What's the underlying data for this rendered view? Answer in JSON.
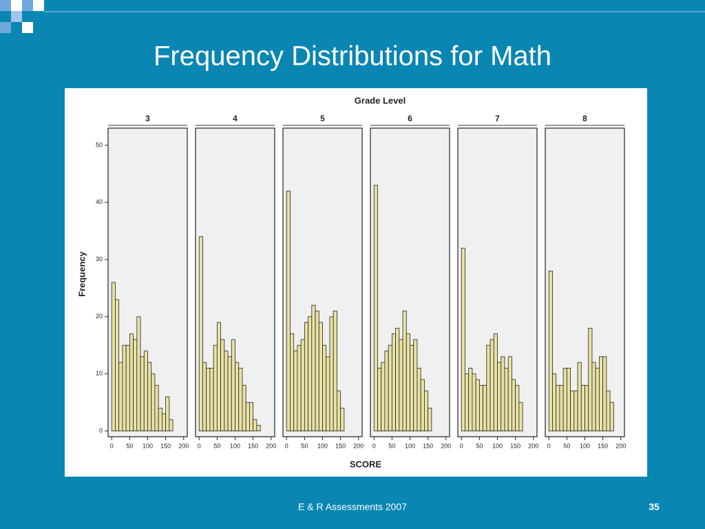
{
  "slide": {
    "title": "Frequency Distributions for Math",
    "footer": "E & R Assessments 2007",
    "page_number": "35"
  },
  "figure": {
    "title": "Grade Level",
    "ylabel": "Frequency",
    "xlabel": "SCORE"
  },
  "chart_data": [
    {
      "type": "histogram",
      "title": "3",
      "color": "#e8e2a4",
      "bins": [
        0,
        10,
        20,
        30,
        40,
        50,
        60,
        70,
        80,
        90,
        100,
        110,
        120,
        130,
        140,
        150,
        160,
        170,
        180
      ],
      "values": [
        26,
        23,
        12,
        15,
        15,
        17,
        16,
        20,
        13,
        14,
        12,
        10,
        8,
        4,
        3,
        6,
        2,
        0
      ],
      "xlim": [
        -10,
        210
      ],
      "xticks": [
        0,
        50,
        100,
        150,
        200
      ],
      "ylim": [
        -1,
        53
      ],
      "yticks": [
        0,
        10,
        20,
        30,
        40,
        50
      ]
    },
    {
      "type": "histogram",
      "title": "4",
      "color": "#e8e2a4",
      "bins": [
        0,
        10,
        20,
        30,
        40,
        50,
        60,
        70,
        80,
        90,
        100,
        110,
        120,
        130,
        140,
        150,
        160,
        170,
        180
      ],
      "values": [
        34,
        12,
        11,
        11,
        15,
        19,
        16,
        14,
        13,
        16,
        12,
        11,
        8,
        5,
        5,
        2,
        1,
        0
      ],
      "xlim": [
        -10,
        210
      ],
      "xticks": [
        0,
        50,
        100,
        150,
        200
      ],
      "ylim": [
        -1,
        53
      ]
    },
    {
      "type": "histogram",
      "title": "5",
      "color": "#e8e2a4",
      "bins": [
        0,
        10,
        20,
        30,
        40,
        50,
        60,
        70,
        80,
        90,
        100,
        110,
        120,
        130,
        140,
        150,
        160,
        170,
        180
      ],
      "values": [
        42,
        17,
        14,
        15,
        16,
        19,
        20,
        22,
        21,
        19,
        15,
        13,
        20,
        21,
        7,
        4,
        0,
        0
      ],
      "xlim": [
        -10,
        210
      ],
      "xticks": [
        0,
        50,
        100,
        150,
        200
      ],
      "ylim": [
        -1,
        53
      ]
    },
    {
      "type": "histogram",
      "title": "6",
      "color": "#e8e2a4",
      "bins": [
        0,
        10,
        20,
        30,
        40,
        50,
        60,
        70,
        80,
        90,
        100,
        110,
        120,
        130,
        140,
        150,
        160,
        170,
        180
      ],
      "values": [
        43,
        11,
        12,
        14,
        15,
        17,
        18,
        16,
        21,
        17,
        15,
        16,
        11,
        9,
        7,
        4,
        0,
        0
      ],
      "xlim": [
        -10,
        210
      ],
      "xticks": [
        0,
        50,
        100,
        150,
        200
      ],
      "ylim": [
        -1,
        53
      ]
    },
    {
      "type": "histogram",
      "title": "7",
      "color": "#e8e2a4",
      "bins": [
        0,
        10,
        20,
        30,
        40,
        50,
        60,
        70,
        80,
        90,
        100,
        110,
        120,
        130,
        140,
        150,
        160,
        170,
        180
      ],
      "values": [
        32,
        10,
        11,
        10,
        9,
        8,
        8,
        15,
        16,
        17,
        12,
        13,
        11,
        13,
        9,
        8,
        5,
        0
      ],
      "xlim": [
        -10,
        210
      ],
      "xticks": [
        0,
        50,
        100,
        150,
        200
      ],
      "ylim": [
        -1,
        53
      ]
    },
    {
      "type": "histogram",
      "title": "8",
      "color": "#e8e2a4",
      "bins": [
        0,
        10,
        20,
        30,
        40,
        50,
        60,
        70,
        80,
        90,
        100,
        110,
        120,
        130,
        140,
        150,
        160,
        170,
        180
      ],
      "values": [
        28,
        10,
        8,
        8,
        11,
        11,
        7,
        7,
        12,
        8,
        8,
        18,
        12,
        11,
        13,
        13,
        7,
        5
      ],
      "xlim": [
        -10,
        210
      ],
      "xticks": [
        0,
        50,
        100,
        150,
        200
      ],
      "ylim": [
        -1,
        53
      ]
    }
  ]
}
